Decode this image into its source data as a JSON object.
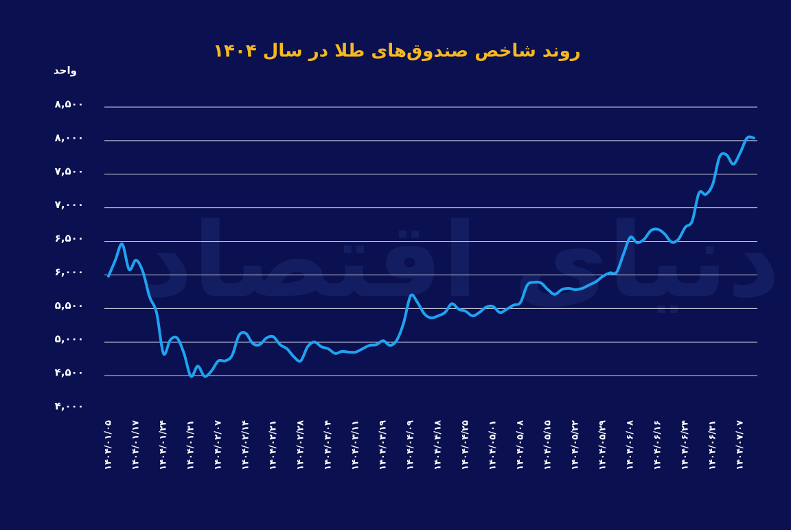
{
  "chart_data": {
    "type": "line",
    "title": "روند شاخص صندوق‌های طلا در سال ۱۴۰۴",
    "y_axis_label": "واحد",
    "watermark": "دنیای اقتصاد",
    "categories": [
      "۱۴۰۴/۰۱/۰۵",
      null,
      null,
      null,
      "۱۴۰۴/۰۱/۱۷",
      null,
      null,
      null,
      "۱۴۰۴/۰۱/۲۴",
      null,
      null,
      null,
      "۱۴۰۴/۰۱/۳۱",
      null,
      null,
      null,
      "۱۴۰۴/۰۲/۰۷",
      null,
      null,
      null,
      "۱۴۰۴/۰۲/۱۴",
      null,
      null,
      null,
      "۱۴۰۴/۰۲/۲۱",
      null,
      null,
      null,
      "۱۴۰۴/۰۲/۲۸",
      null,
      null,
      null,
      "۱۴۰۴/۰۳/۰۴",
      null,
      null,
      null,
      "۱۴۰۴/۰۳/۱۱",
      null,
      null,
      null,
      "۱۴۰۴/۰۳/۱۹",
      null,
      null,
      null,
      "۱۴۰۴/۰۴/۰۹",
      null,
      null,
      null,
      "۱۴۰۴/۰۴/۱۸",
      null,
      null,
      null,
      "۱۴۰۴/۰۴/۲۵",
      null,
      null,
      null,
      "۱۴۰۴/۰۵/۰۱",
      null,
      null,
      null,
      "۱۴۰۴/۰۵/۰۸",
      null,
      null,
      null,
      "۱۴۰۴/۰۵/۱۵",
      null,
      null,
      null,
      "۱۴۰۴/۰۵/۲۲",
      null,
      null,
      null,
      "۱۴۰۴/۰۵/۲۹",
      null,
      null,
      null,
      "۱۴۰۴/۰۶/۰۸",
      null,
      null,
      null,
      "۱۴۰۴/۰۶/۱۶",
      null,
      null,
      null,
      "۱۴۰۴/۰۶/۲۴",
      null,
      null,
      null,
      "۱۴۰۴/۰۶/۳۱",
      null,
      null,
      null,
      "۱۴۰۴/۰۷/۰۷",
      null,
      null
    ],
    "series": [
      {
        "name": "شاخص صندوق‌های طلا",
        "color": "#1fa3f0",
        "values": [
          5980,
          6220,
          6460,
          6080,
          6220,
          6050,
          5670,
          5440,
          4830,
          5030,
          5060,
          4830,
          4490,
          4640,
          4490,
          4570,
          4720,
          4720,
          4800,
          5100,
          5130,
          4980,
          4960,
          5060,
          5080,
          4960,
          4900,
          4780,
          4720,
          4930,
          5000,
          4930,
          4900,
          4830,
          4860,
          4850,
          4850,
          4900,
          4950,
          4960,
          5020,
          4950,
          5030,
          5290,
          5690,
          5590,
          5420,
          5360,
          5390,
          5440,
          5570,
          5490,
          5460,
          5390,
          5440,
          5520,
          5530,
          5440,
          5490,
          5550,
          5590,
          5850,
          5890,
          5880,
          5780,
          5710,
          5780,
          5800,
          5780,
          5800,
          5850,
          5900,
          5980,
          6030,
          6040,
          6310,
          6560,
          6480,
          6530,
          6660,
          6680,
          6610,
          6490,
          6530,
          6710,
          6800,
          7220,
          7200,
          7350,
          7760,
          7790,
          7650,
          7820,
          8040,
          8040
        ]
      }
    ],
    "ylim": [
      4000,
      8500
    ],
    "yticks": [
      {
        "value": 4000,
        "label": "۴,۰۰۰"
      },
      {
        "value": 4500,
        "label": "۴,۵۰۰"
      },
      {
        "value": 5000,
        "label": "۵,۰۰۰"
      },
      {
        "value": 5500,
        "label": "۵,۵۰۰"
      },
      {
        "value": 6000,
        "label": "۶,۰۰۰"
      },
      {
        "value": 6500,
        "label": "۶,۵۰۰"
      },
      {
        "value": 7000,
        "label": "۷,۰۰۰"
      },
      {
        "value": 7500,
        "label": "۷,۵۰۰"
      },
      {
        "value": 8000,
        "label": "۸,۰۰۰"
      },
      {
        "value": 8500,
        "label": "۸,۵۰۰"
      }
    ],
    "grid": true
  }
}
